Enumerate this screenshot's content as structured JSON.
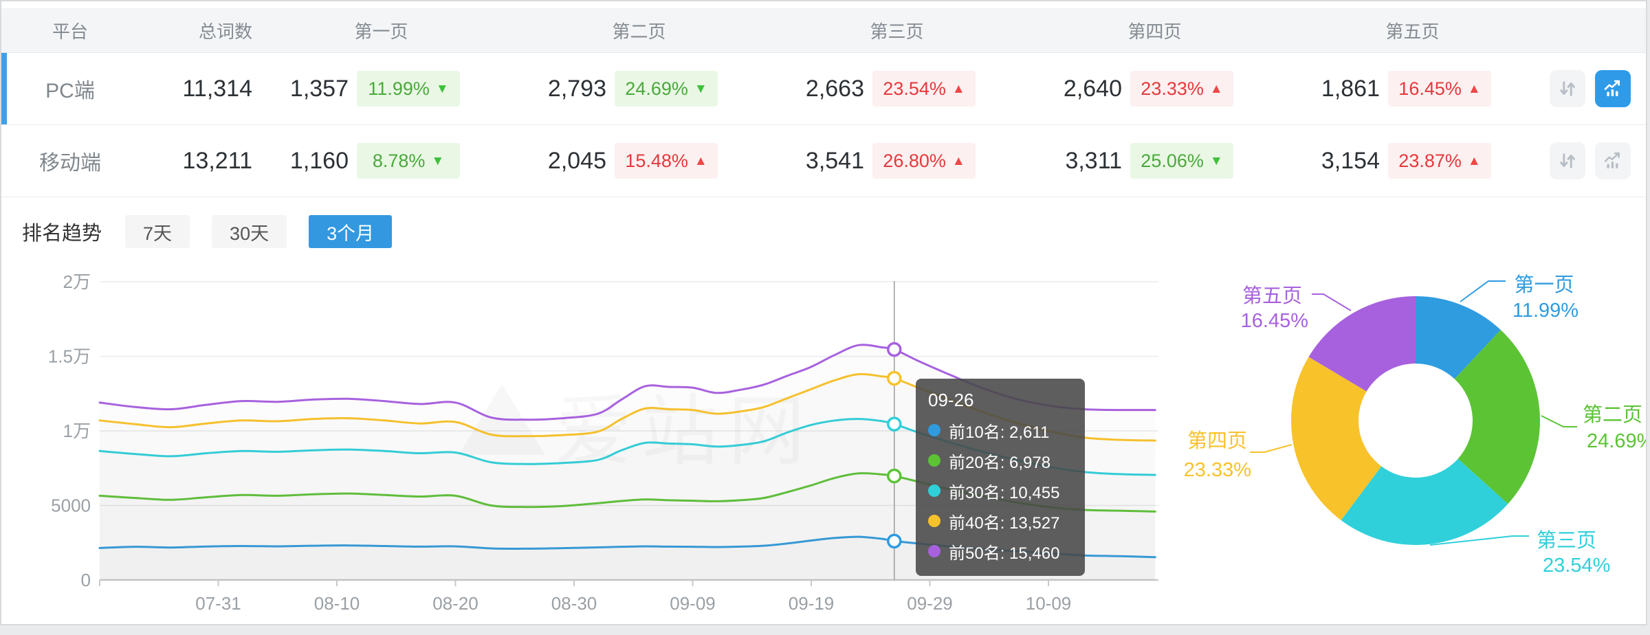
{
  "table": {
    "headers": [
      "平台",
      "总词数",
      "第一页",
      "第二页",
      "第三页",
      "第四页",
      "第五页"
    ],
    "rows": [
      {
        "platform": "PC端",
        "total": "11,314",
        "selected": true,
        "chart_active": true,
        "pages": [
          {
            "count": "1,357",
            "pct": "11.99%",
            "dir": "down"
          },
          {
            "count": "2,793",
            "pct": "24.69%",
            "dir": "down"
          },
          {
            "count": "2,663",
            "pct": "23.54%",
            "dir": "up"
          },
          {
            "count": "2,640",
            "pct": "23.33%",
            "dir": "up"
          },
          {
            "count": "1,861",
            "pct": "16.45%",
            "dir": "up"
          }
        ]
      },
      {
        "platform": "移动端",
        "total": "13,211",
        "selected": false,
        "chart_active": false,
        "pages": [
          {
            "count": "1,160",
            "pct": "8.78%",
            "dir": "down"
          },
          {
            "count": "2,045",
            "pct": "15.48%",
            "dir": "up"
          },
          {
            "count": "3,541",
            "pct": "26.80%",
            "dir": "up"
          },
          {
            "count": "3,311",
            "pct": "25.06%",
            "dir": "down"
          },
          {
            "count": "3,154",
            "pct": "23.87%",
            "dir": "up"
          }
        ]
      }
    ]
  },
  "trend": {
    "title": "排名趋势",
    "tabs": [
      {
        "label": "7天",
        "active": false
      },
      {
        "label": "30天",
        "active": false
      },
      {
        "label": "3个月",
        "active": true
      }
    ]
  },
  "tooltip": {
    "title": "09-26",
    "items": [
      {
        "name": "前10名",
        "value": "2,611"
      },
      {
        "name": "前20名",
        "value": "6,978"
      },
      {
        "name": "前30名",
        "value": "10,455"
      },
      {
        "name": "前40名",
        "value": "13,527"
      },
      {
        "name": "前50名",
        "value": "15,460"
      }
    ]
  },
  "watermark": "爱站网",
  "colors": {
    "accent_blue": "#3398e0",
    "selected_row_bar": "#3f9fe9",
    "badge_green_text": "#4aa93c",
    "badge_red_text": "#e4393c",
    "series": [
      "#2f9ce0",
      "#5cc335",
      "#2fd0da",
      "#f8c22b",
      "#a761de"
    ]
  },
  "chart_data": [
    {
      "type": "line",
      "title": "排名趋势 3个月",
      "legend_position": "tooltip-only",
      "grid": true,
      "ylim": [
        0,
        20000
      ],
      "y_ticks": [
        {
          "label": "0",
          "value": 0
        },
        {
          "label": "5000",
          "value": 5000
        },
        {
          "label": "1万",
          "value": 10000
        },
        {
          "label": "1.5万",
          "value": 15000
        },
        {
          "label": "2万",
          "value": 20000
        }
      ],
      "x_ticks": [
        {
          "label": "07-31",
          "day": 10
        },
        {
          "label": "08-10",
          "day": 20
        },
        {
          "label": "08-20",
          "day": 30
        },
        {
          "label": "08-30",
          "day": 40
        },
        {
          "label": "09-09",
          "day": 50
        },
        {
          "label": "09-19",
          "day": 60
        },
        {
          "label": "09-29",
          "day": 70
        },
        {
          "label": "10-09",
          "day": 80
        }
      ],
      "crosshair": {
        "day": 67,
        "date": "09-26"
      },
      "days": [
        0,
        3,
        6,
        9,
        12,
        15,
        18,
        21,
        24,
        27,
        30,
        33,
        36,
        39,
        42,
        44,
        46,
        48,
        50,
        52,
        54,
        56,
        58,
        60,
        62,
        64,
        66,
        67,
        69,
        71,
        74,
        77,
        80,
        83,
        86,
        89
      ],
      "series": [
        {
          "name": "前10名",
          "color": "#2f9ce0",
          "values": [
            2150,
            2230,
            2180,
            2250,
            2280,
            2260,
            2300,
            2320,
            2280,
            2240,
            2260,
            2120,
            2100,
            2140,
            2190,
            2230,
            2260,
            2240,
            2230,
            2210,
            2240,
            2300,
            2450,
            2650,
            2820,
            2900,
            2760,
            2611,
            2450,
            2300,
            2100,
            1950,
            1800,
            1650,
            1600,
            1530
          ]
        },
        {
          "name": "前20名",
          "color": "#5cc335",
          "values": [
            5650,
            5500,
            5380,
            5550,
            5700,
            5650,
            5750,
            5800,
            5700,
            5600,
            5650,
            5000,
            4900,
            4960,
            5150,
            5300,
            5400,
            5350,
            5320,
            5280,
            5350,
            5500,
            5900,
            6350,
            6850,
            7150,
            7080,
            6978,
            6600,
            6200,
            5700,
            5250,
            4900,
            4700,
            4650,
            4590
          ]
        },
        {
          "name": "前30名",
          "color": "#2fd0da",
          "values": [
            8650,
            8450,
            8300,
            8500,
            8650,
            8600,
            8700,
            8750,
            8650,
            8500,
            8550,
            7900,
            7780,
            7850,
            8050,
            8700,
            9200,
            9150,
            9100,
            8950,
            9050,
            9300,
            9900,
            10400,
            10700,
            10800,
            10650,
            10455,
            9900,
            9400,
            8700,
            8100,
            7600,
            7250,
            7100,
            7050
          ]
        },
        {
          "name": "前40名",
          "color": "#f8c22b",
          "values": [
            10700,
            10450,
            10250,
            10500,
            10700,
            10650,
            10800,
            10850,
            10700,
            10500,
            10600,
            9750,
            9650,
            9720,
            9950,
            10800,
            11500,
            11450,
            11400,
            11150,
            11300,
            11600,
            12200,
            12800,
            13400,
            13800,
            13650,
            13527,
            12900,
            12300,
            11400,
            10600,
            10000,
            9550,
            9400,
            9350
          ]
        },
        {
          "name": "前50名",
          "color": "#a761de",
          "values": [
            11900,
            11600,
            11450,
            11750,
            12000,
            11950,
            12100,
            12150,
            12000,
            11800,
            11900,
            10900,
            10750,
            10850,
            11150,
            12100,
            13000,
            12950,
            12900,
            12550,
            12750,
            13100,
            13700,
            14300,
            15100,
            15750,
            15600,
            15460,
            14700,
            14000,
            13000,
            12200,
            11700,
            11450,
            11400,
            11400
          ]
        }
      ]
    },
    {
      "type": "donut",
      "labels": [
        "第一页",
        "第二页",
        "第三页",
        "第四页",
        "第五页"
      ],
      "values": [
        11.99,
        24.69,
        23.54,
        23.33,
        16.45
      ],
      "unit": "%",
      "colors": [
        "#2f9ce0",
        "#5cc335",
        "#2fd0da",
        "#f8c22b",
        "#a761de"
      ],
      "start_angle_deg": 0,
      "direction": "clockwise"
    }
  ]
}
